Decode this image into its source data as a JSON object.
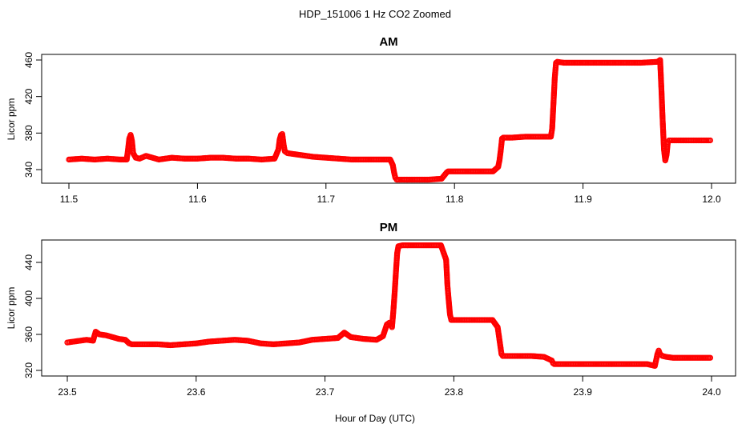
{
  "figure": {
    "title": "HDP_151006  1 Hz CO2 Zoomed",
    "xlabel": "Hour of Day (UTC)",
    "marker_color": "#ff0000"
  },
  "chart_data": [
    {
      "type": "scatter",
      "title": "AM",
      "xlabel": "",
      "ylabel": "Licor ppm",
      "xlim": [
        11.5,
        12.0
      ],
      "ylim": [
        325,
        465
      ],
      "xticks": [
        "11.5",
        "11.6",
        "11.7",
        "11.8",
        "11.9",
        "12.0"
      ],
      "yticks": [
        "340",
        "380",
        "420",
        "460"
      ],
      "grid": false,
      "legend": "none",
      "marker": "open-circle",
      "series": [
        {
          "x": [
            11.5,
            11.51,
            11.52,
            11.53,
            11.54,
            11.545,
            11.546,
            11.547,
            11.548,
            11.549,
            11.55,
            11.552,
            11.555,
            11.56,
            11.565,
            11.57,
            11.58,
            11.59,
            11.6,
            11.61,
            11.62,
            11.63,
            11.64,
            11.65,
            11.66,
            11.663,
            11.664,
            11.665,
            11.666,
            11.667,
            11.668,
            11.67,
            11.675,
            11.68,
            11.69,
            11.7,
            11.71,
            11.72,
            11.73,
            11.74,
            11.75,
            11.752,
            11.753,
            11.754,
            11.755,
            11.76,
            11.77,
            11.78,
            11.79,
            11.794,
            11.795,
            11.8,
            11.81,
            11.82,
            11.83,
            11.834,
            11.835,
            11.836,
            11.837,
            11.838,
            11.845,
            11.855,
            11.865,
            11.875,
            11.876,
            11.877,
            11.878,
            11.879,
            11.88,
            11.885,
            11.9,
            11.915,
            11.93,
            11.945,
            11.958,
            11.96,
            11.961,
            11.962,
            11.963,
            11.964,
            11.965,
            11.966,
            11.967,
            11.97,
            11.975,
            11.985,
            11.995,
            11.999
          ],
          "y": [
            351,
            352,
            351,
            352,
            351,
            351,
            362,
            374,
            378,
            372,
            358,
            353,
            352,
            355,
            353,
            351,
            353,
            352,
            352,
            353,
            353,
            352,
            352,
            351,
            352,
            362,
            373,
            378,
            379,
            368,
            360,
            358,
            357,
            356,
            354,
            353,
            352,
            351,
            351,
            351,
            351,
            345,
            337,
            331,
            329,
            329,
            329,
            329,
            330,
            337,
            338,
            338,
            338,
            338,
            338,
            343,
            350,
            361,
            374,
            375,
            375,
            376,
            376,
            376,
            385,
            412,
            440,
            457,
            458,
            457,
            457,
            457,
            457,
            457,
            458,
            460,
            428,
            393,
            362,
            350,
            356,
            370,
            372,
            372,
            372,
            372,
            372,
            372
          ]
        }
      ]
    },
    {
      "type": "scatter",
      "title": "PM",
      "xlabel": "Hour of Day (UTC)",
      "ylabel": "Licor ppm",
      "xlim": [
        23.5,
        24.0
      ],
      "ylim": [
        320,
        465
      ],
      "xticks": [
        "23.5",
        "23.6",
        "23.7",
        "23.8",
        "23.9",
        "24.0"
      ],
      "yticks": [
        "320",
        "360",
        "400",
        "440"
      ],
      "grid": false,
      "legend": "none",
      "marker": "open-circle",
      "series": [
        {
          "x": [
            23.5,
            23.505,
            23.51,
            23.515,
            23.52,
            23.522,
            23.525,
            23.53,
            23.535,
            23.54,
            23.545,
            23.548,
            23.55,
            23.56,
            23.57,
            23.58,
            23.59,
            23.6,
            23.61,
            23.62,
            23.63,
            23.64,
            23.65,
            23.66,
            23.67,
            23.68,
            23.69,
            23.7,
            23.71,
            23.715,
            23.72,
            23.73,
            23.74,
            23.745,
            23.748,
            23.75,
            23.752,
            23.753,
            23.754,
            23.755,
            23.756,
            23.757,
            23.76,
            23.77,
            23.78,
            23.79,
            23.794,
            23.795,
            23.796,
            23.797,
            23.798,
            23.8,
            23.81,
            23.82,
            23.83,
            23.834,
            23.835,
            23.836,
            23.837,
            23.838,
            23.84,
            23.85,
            23.86,
            23.87,
            23.876,
            23.877,
            23.878,
            23.88,
            23.89,
            23.9,
            23.91,
            23.92,
            23.93,
            23.94,
            23.95,
            23.956,
            23.958,
            23.959,
            23.96,
            23.962,
            23.965,
            23.97,
            23.98,
            23.99,
            23.999
          ],
          "y": [
            351,
            352,
            353,
            354,
            353,
            363,
            360,
            359,
            357,
            355,
            354,
            350,
            349,
            349,
            349,
            348,
            349,
            350,
            352,
            353,
            354,
            353,
            350,
            349,
            350,
            351,
            354,
            355,
            356,
            362,
            357,
            355,
            354,
            358,
            371,
            373,
            368,
            385,
            405,
            428,
            450,
            458,
            459,
            459,
            459,
            459,
            443,
            415,
            398,
            382,
            376,
            376,
            376,
            376,
            376,
            368,
            358,
            348,
            338,
            336,
            336,
            336,
            336,
            335,
            331,
            328,
            327,
            327,
            327,
            327,
            327,
            327,
            327,
            327,
            327,
            325,
            338,
            342,
            338,
            336,
            335,
            334,
            334,
            334,
            334
          ]
        }
      ]
    }
  ]
}
